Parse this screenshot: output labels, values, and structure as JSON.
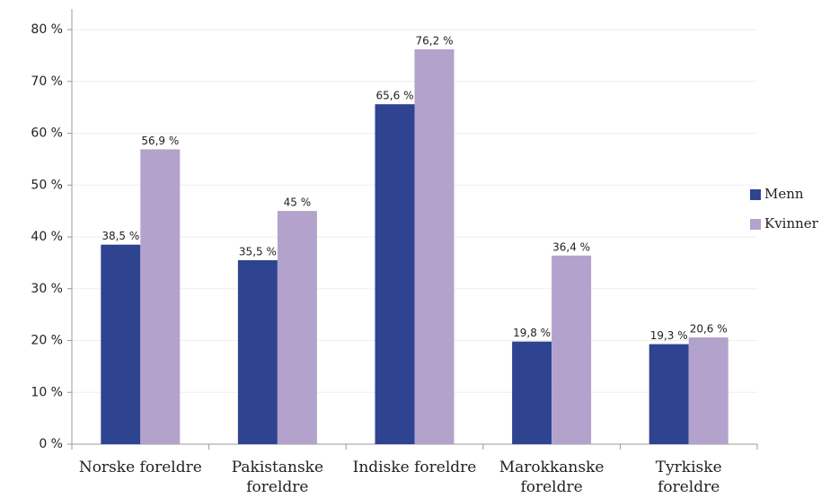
{
  "chart_data": {
    "type": "bar",
    "categories": [
      "Norske foreldre",
      "Pakistanske foreldre",
      "Indiske foreldre",
      "Marokkanske foreldre",
      "Tyrkiske foreldre"
    ],
    "series": [
      {
        "name": "Menn",
        "color": "#2e4490",
        "values": [
          38.5,
          35.5,
          65.6,
          19.8,
          19.3
        ],
        "value_labels": [
          "38,5 %",
          "35,5 %",
          "65,6 %",
          "19,8 %",
          "19,3 %"
        ]
      },
      {
        "name": "Kvinner",
        "color": "#b3a2cc",
        "values": [
          56.9,
          45,
          76.2,
          36.4,
          20.6
        ],
        "value_labels": [
          "56,9 %",
          "45 %",
          "76,2 %",
          "36,4 %",
          "20,6 %"
        ]
      }
    ],
    "ylim": [
      0,
      80
    ],
    "yticks": [
      {
        "value": 0,
        "label": "0 %"
      },
      {
        "value": 10,
        "label": "10 %"
      },
      {
        "value": 20,
        "label": "20 %"
      },
      {
        "value": 30,
        "label": "30 %"
      },
      {
        "value": 40,
        "label": "40 %"
      },
      {
        "value": 50,
        "label": "50 %"
      },
      {
        "value": 60,
        "label": "60 %"
      },
      {
        "value": 70,
        "label": "70 %"
      },
      {
        "value": 80,
        "label": "80 %"
      }
    ],
    "grid": true,
    "legend": "right"
  }
}
